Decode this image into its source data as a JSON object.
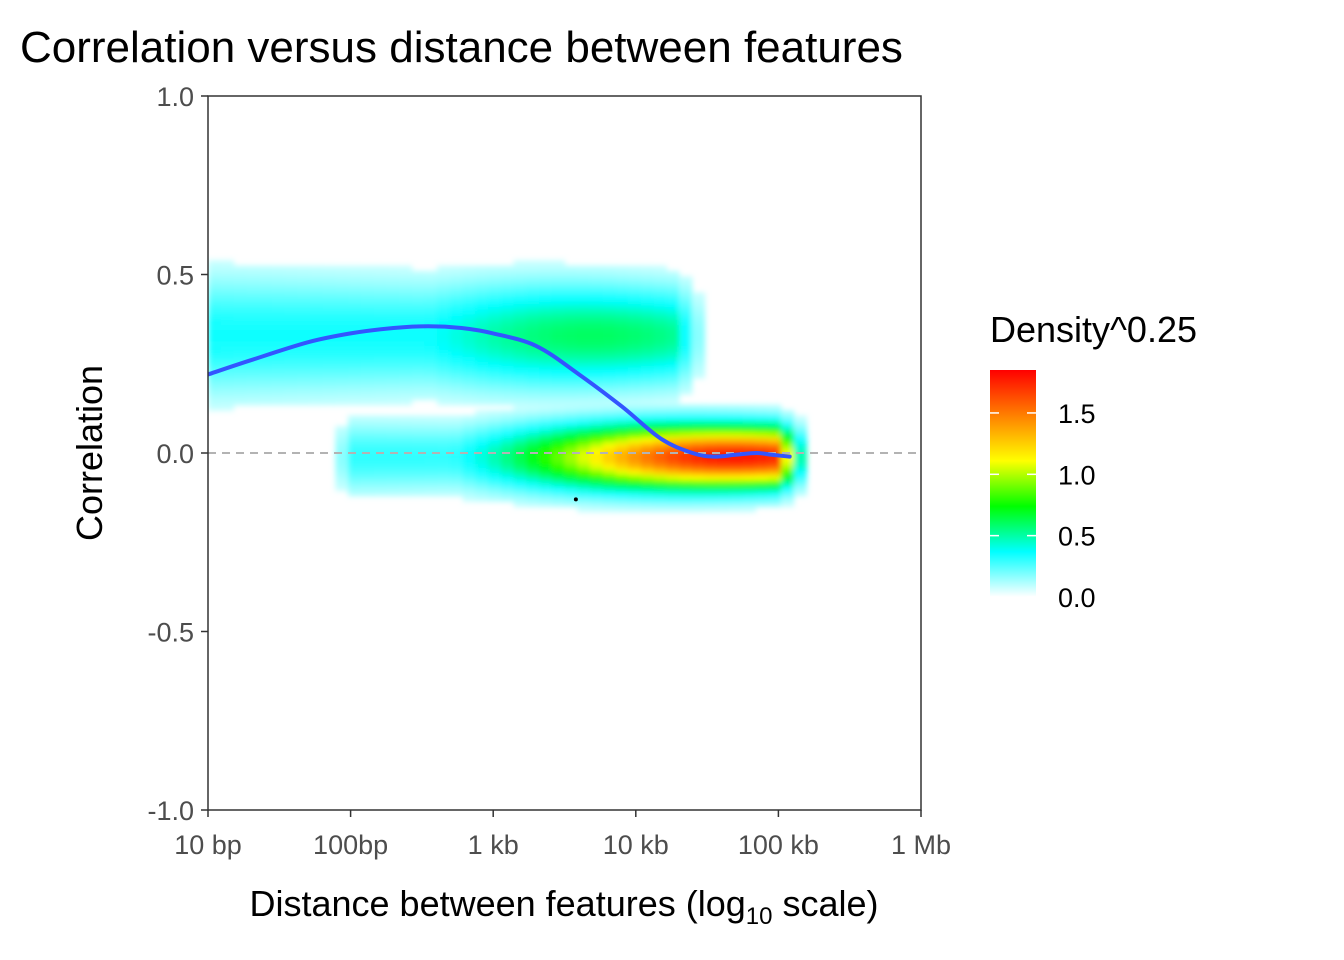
{
  "chart_data": {
    "type": "heatmap",
    "title": "Correlation versus distance between features",
    "xlabel": {
      "prefix": "Distance between features (log",
      "subscript": "10",
      "suffix": " scale)"
    },
    "ylabel": "Correlation",
    "x_scale": "log10",
    "xlim": [
      10,
      1000000
    ],
    "ylim": [
      -1.0,
      1.0
    ],
    "x_ticks": [
      {
        "value": 10,
        "label": "10 bp"
      },
      {
        "value": 100,
        "label": "100bp"
      },
      {
        "value": 1000,
        "label": "1 kb"
      },
      {
        "value": 10000,
        "label": "10 kb"
      },
      {
        "value": 100000,
        "label": "100 kb"
      },
      {
        "value": 1000000,
        "label": "1 Mb"
      }
    ],
    "y_ticks": [
      {
        "value": 1.0,
        "label": "1.0"
      },
      {
        "value": 0.5,
        "label": "0.5"
      },
      {
        "value": 0.0,
        "label": "0.0"
      },
      {
        "value": -0.5,
        "label": "-0.5"
      },
      {
        "value": -1.0,
        "label": "-1.0"
      }
    ],
    "reference_line": {
      "y": 0.0,
      "style": "dashed",
      "color": "#b3b3b3"
    },
    "density_clusters": [
      {
        "x_min": 10,
        "x_max": 30000,
        "y_center": 0.33,
        "y_spread": 0.1,
        "peak_density": 0.6,
        "peak_x": 5000
      },
      {
        "x_min": 80,
        "x_max": 150000,
        "y_center": -0.01,
        "y_spread": 0.06,
        "peak_density": 1.8,
        "peak_x": 50000
      }
    ],
    "outlier_point": {
      "x": 3800,
      "y": -0.13
    },
    "smooth_series": {
      "name": "",
      "color": "#3355ff",
      "points": [
        {
          "x": 10,
          "y": 0.22
        },
        {
          "x": 20,
          "y": 0.26
        },
        {
          "x": 50,
          "y": 0.31
        },
        {
          "x": 100,
          "y": 0.335
        },
        {
          "x": 200,
          "y": 0.35
        },
        {
          "x": 350,
          "y": 0.355
        },
        {
          "x": 600,
          "y": 0.35
        },
        {
          "x": 1000,
          "y": 0.335
        },
        {
          "x": 2000,
          "y": 0.3
        },
        {
          "x": 4000,
          "y": 0.22
        },
        {
          "x": 8000,
          "y": 0.13
        },
        {
          "x": 15000,
          "y": 0.04
        },
        {
          "x": 25000,
          "y": 0.0
        },
        {
          "x": 35000,
          "y": -0.01
        },
        {
          "x": 50000,
          "y": -0.005
        },
        {
          "x": 70000,
          "y": 0.0
        },
        {
          "x": 90000,
          "y": -0.005
        },
        {
          "x": 120000,
          "y": -0.01
        }
      ]
    },
    "legend": {
      "title": "Density^0.25",
      "placement": "right",
      "range": [
        0.0,
        1.85
      ],
      "ticks": [
        {
          "value": 1.5,
          "label": "1.5"
        },
        {
          "value": 1.0,
          "label": "1.0"
        },
        {
          "value": 0.5,
          "label": "0.5"
        },
        {
          "value": 0.0,
          "label": "0.0"
        }
      ],
      "colors": [
        "#ffffff",
        "#00ffff",
        "#00ff00",
        "#ffff00",
        "#ff8000",
        "#ff0000"
      ]
    },
    "grid": false
  }
}
